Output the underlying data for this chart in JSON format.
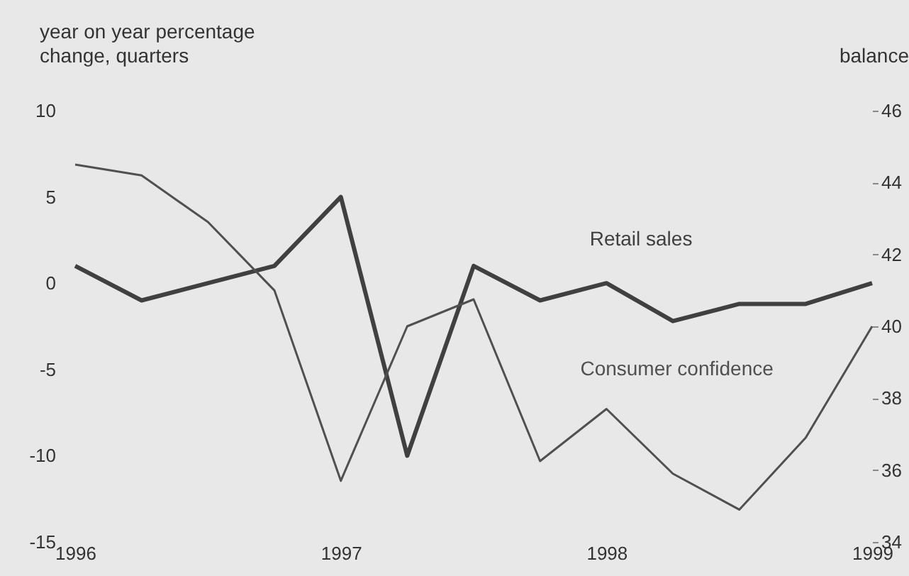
{
  "chart_data": {
    "type": "line",
    "ylabel": "year on year percentage change, quarters",
    "y2label": "balance",
    "x": [
      1996,
      1996.25,
      1996.5,
      1996.75,
      1997,
      1997.25,
      1997.5,
      1997.75,
      1998,
      1998.25,
      1998.5,
      1998.75,
      1999
    ],
    "series": [
      {
        "name": "Retail sales",
        "color": "#404040",
        "values": [
          1,
          -1,
          0,
          1,
          5,
          -10,
          1,
          -1,
          0,
          -2.2,
          -1.2,
          -1.2,
          0
        ]
      },
      {
        "name": "Consumer confidence",
        "color": "#505050",
        "axis": "y2",
        "values": [
          44.5,
          44.2,
          42.9,
          41.0,
          35.7,
          40.0,
          40.75,
          36.25,
          37.7,
          35.9,
          34.9,
          36.9,
          40.0
        ]
      }
    ],
    "xlim": [
      1996,
      1999
    ],
    "xticks": [
      1996,
      1997,
      1998,
      1999
    ],
    "ylim": [
      -15,
      10
    ],
    "yticks": [
      -15,
      -10,
      -5,
      0,
      5,
      10
    ],
    "y2lim": [
      34,
      46
    ],
    "y2ticks": [
      34,
      36,
      38,
      40,
      42,
      44,
      46
    ],
    "grid": false,
    "marker": "none",
    "line_style": "solid"
  }
}
